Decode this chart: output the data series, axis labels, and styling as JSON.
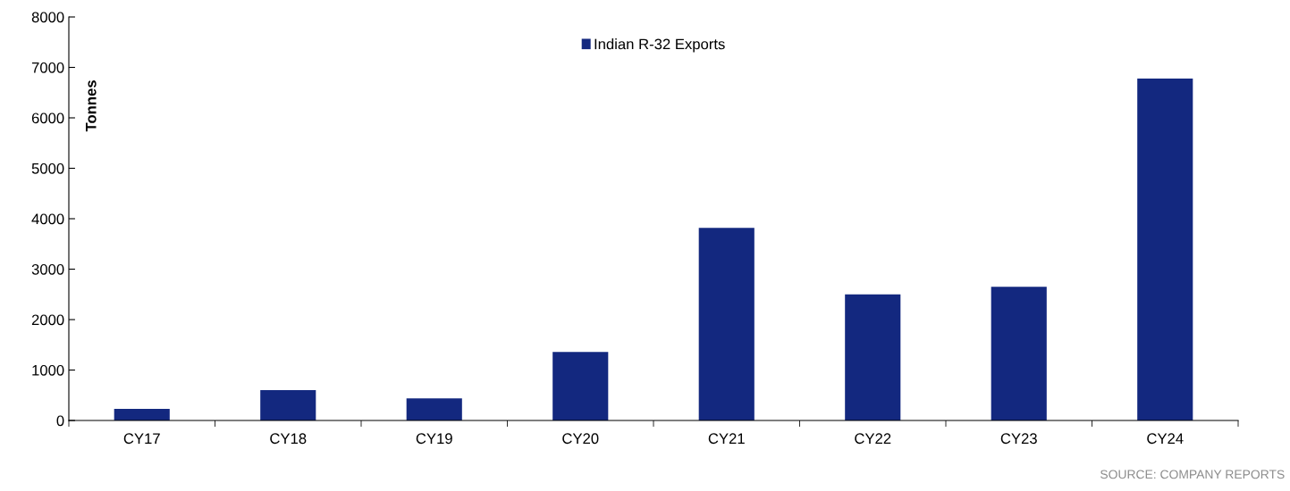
{
  "chart_data": {
    "type": "bar",
    "ylabel": "Tonnes",
    "categories": [
      "CY17",
      "CY18",
      "CY19",
      "CY20",
      "CY21",
      "CY22",
      "CY23",
      "CY24"
    ],
    "series": [
      {
        "name": "Indian R-32 Exports",
        "color": "#13287f",
        "values": [
          230,
          600,
          440,
          1360,
          3820,
          2500,
          2650,
          6780
        ]
      }
    ],
    "ylim": [
      0,
      8000
    ],
    "yticks": [
      0,
      1000,
      2000,
      3000,
      4000,
      5000,
      6000,
      7000,
      8000
    ],
    "legend": "top",
    "grid": false,
    "annotations": [
      "SOURCE: COMPANY REPORTS"
    ]
  }
}
